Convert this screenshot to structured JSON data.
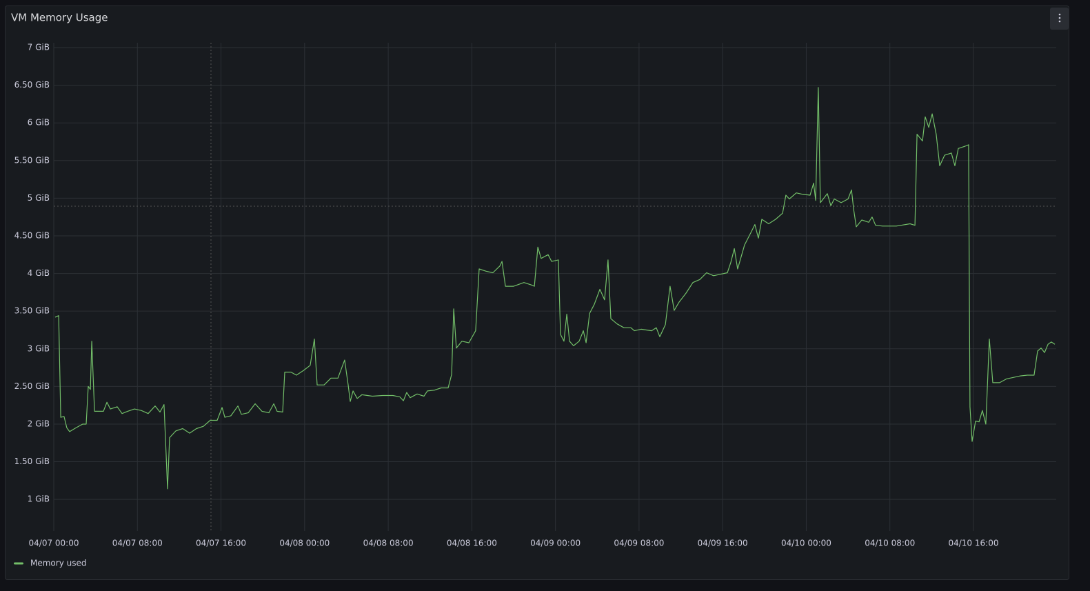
{
  "chart_data": {
    "type": "line",
    "title": "VM Memory Usage",
    "x": [
      "04/07 00:08",
      "04/07 00:28",
      "04/07 00:40",
      "04/07 00:59",
      "04/07 01:15",
      "04/07 01:31",
      "04/07 02:07",
      "04/07 02:46",
      "04/07 03:06",
      "04/07 03:18",
      "04/07 03:30",
      "04/07 03:38",
      "04/07 03:54",
      "04/07 04:45",
      "04/07 05:05",
      "04/07 05:25",
      "04/07 06:04",
      "04/07 06:32",
      "04/07 07:04",
      "04/07 07:43",
      "04/07 08:23",
      "04/07 09:02",
      "04/07 09:42",
      "04/07 10:10",
      "04/07 10:33",
      "04/07 10:45",
      "04/07 10:53",
      "04/07 11:05",
      "04/07 11:41",
      "04/07 12:20",
      "04/07 13:00",
      "04/07 13:39",
      "04/07 14:19",
      "04/07 14:58",
      "04/07 15:38",
      "04/07 16:06",
      "04/07 16:22",
      "04/07 16:57",
      "04/07 17:37",
      "04/07 17:57",
      "04/07 18:36",
      "04/07 19:16",
      "04/07 19:55",
      "04/07 20:35",
      "04/07 21:03",
      "04/07 21:22",
      "04/07 21:54",
      "04/07 22:06",
      "04/07 22:42",
      "04/07 23:13",
      "04/07 23:53",
      "04/08 00:32",
      "04/08 00:56",
      "04/08 01:12",
      "04/08 01:52",
      "04/08 02:31",
      "04/08 03:11",
      "04/08 03:50",
      "04/08 04:10",
      "04/08 04:22",
      "04/08 04:38",
      "04/08 05:02",
      "04/08 05:29",
      "04/08 06:29",
      "04/08 07:28",
      "04/08 08:27",
      "04/08 09:07",
      "04/08 09:27",
      "04/08 09:46",
      "04/08 10:06",
      "04/08 10:46",
      "04/08 11:25",
      "04/08 11:45",
      "04/08 12:25",
      "04/08 13:04",
      "04/08 13:44",
      "04/08 14:04",
      "04/08 14:16",
      "04/08 14:31",
      "04/08 15:03",
      "04/08 15:43",
      "04/08 16:22",
      "04/08 16:42",
      "04/08 17:22",
      "04/08 18:01",
      "04/08 18:41",
      "04/08 18:53",
      "04/08 19:13",
      "04/08 20:00",
      "04/08 20:59",
      "04/08 21:39",
      "04/08 21:59",
      "04/08 22:19",
      "04/08 22:38",
      "04/08 23:18",
      "04/08 23:38",
      "04/09 00:17",
      "04/09 00:29",
      "04/09 00:49",
      "04/09 01:05",
      "04/09 01:21",
      "04/09 01:44",
      "04/09 02:16",
      "04/09 02:40",
      "04/09 02:56",
      "04/09 03:16",
      "04/09 03:43",
      "04/09 04:15",
      "04/09 04:42",
      "04/09 05:02",
      "04/09 05:18",
      "04/09 05:54",
      "04/09 06:33",
      "04/09 07:13",
      "04/09 07:33",
      "04/09 08:12",
      "04/09 09:12",
      "04/09 09:39",
      "04/09 09:59",
      "04/09 10:31",
      "04/09 10:58",
      "04/09 11:22",
      "04/09 11:50",
      "04/09 12:30",
      "04/09 13:09",
      "04/09 13:49",
      "04/09 14:28",
      "04/09 15:08",
      "04/09 15:47",
      "04/09 16:27",
      "04/09 16:47",
      "04/09 17:07",
      "04/09 17:26",
      "04/09 18:06",
      "04/09 18:46",
      "04/09 19:05",
      "04/09 19:25",
      "04/09 19:45",
      "04/09 20:24",
      "04/09 21:04",
      "04/09 21:44",
      "04/09 22:03",
      "04/09 22:23",
      "04/09 23:03",
      "04/09 23:42",
      "04/10 00:22",
      "04/10 00:42",
      "04/10 00:54",
      "04/10 01:09",
      "04/10 01:21",
      "04/10 02:01",
      "04/10 02:21",
      "04/10 02:41",
      "04/10 03:20",
      "04/10 04:00",
      "04/10 04:20",
      "04/10 04:32",
      "04/10 04:47",
      "04/10 05:19",
      "04/10 05:59",
      "04/10 06:18",
      "04/10 06:38",
      "04/10 07:18",
      "04/10 08:37",
      "04/10 09:56",
      "04/10 10:24",
      "04/10 10:36",
      "04/10 11:07",
      "04/10 11:23",
      "04/10 11:43",
      "04/10 12:03",
      "04/10 12:26",
      "04/10 12:46",
      "04/10 13:14",
      "04/10 13:53",
      "04/10 14:13",
      "04/10 14:33",
      "04/10 15:12",
      "04/10 15:32",
      "04/10 15:40",
      "04/10 15:52",
      "04/10 16:12",
      "04/10 16:32",
      "04/10 16:51",
      "04/10 17:11",
      "04/10 17:31",
      "04/10 17:51",
      "04/10 18:30",
      "04/10 19:10",
      "04/10 19:49",
      "04/10 20:29",
      "04/10 21:09",
      "04/10 21:48",
      "04/10 22:08",
      "04/10 22:28",
      "04/10 22:48",
      "04/10 23:08",
      "04/10 23:27",
      "04/10 23:47"
    ],
    "series": [
      {
        "name": "Memory used",
        "color": "#73bf69",
        "values": [
          3.42,
          3.44,
          2.09,
          2.1,
          1.95,
          1.9,
          1.95,
          2.0,
          2.0,
          2.5,
          2.46,
          3.1,
          2.17,
          2.17,
          2.29,
          2.2,
          2.23,
          2.14,
          2.17,
          2.2,
          2.18,
          2.14,
          2.24,
          2.16,
          2.26,
          1.59,
          1.14,
          1.82,
          1.91,
          1.94,
          1.88,
          1.94,
          1.97,
          2.05,
          2.05,
          2.22,
          2.09,
          2.11,
          2.24,
          2.13,
          2.15,
          2.27,
          2.17,
          2.15,
          2.27,
          2.17,
          2.16,
          2.69,
          2.69,
          2.65,
          2.71,
          2.78,
          3.13,
          2.52,
          2.52,
          2.61,
          2.61,
          2.85,
          2.52,
          2.3,
          2.44,
          2.34,
          2.39,
          2.37,
          2.38,
          2.38,
          2.36,
          2.31,
          2.42,
          2.35,
          2.4,
          2.37,
          2.44,
          2.45,
          2.48,
          2.48,
          2.66,
          3.53,
          3.01,
          3.1,
          3.08,
          3.24,
          4.06,
          4.03,
          4.01,
          4.1,
          4.16,
          3.83,
          3.83,
          3.88,
          3.85,
          3.83,
          4.35,
          4.2,
          4.25,
          4.16,
          4.18,
          3.19,
          3.1,
          3.46,
          3.1,
          3.04,
          3.1,
          3.24,
          3.08,
          3.47,
          3.59,
          3.79,
          3.65,
          4.18,
          3.4,
          3.33,
          3.28,
          3.28,
          3.24,
          3.26,
          3.24,
          3.28,
          3.16,
          3.32,
          3.83,
          3.51,
          3.62,
          3.74,
          3.88,
          3.92,
          4.01,
          3.97,
          3.99,
          4.01,
          4.15,
          4.33,
          4.06,
          4.38,
          4.56,
          4.65,
          4.47,
          4.72,
          4.66,
          4.72,
          4.8,
          5.04,
          4.99,
          5.07,
          5.05,
          5.04,
          5.2,
          4.97,
          6.47,
          4.94,
          5.06,
          4.9,
          4.99,
          4.94,
          4.99,
          5.11,
          4.85,
          4.62,
          4.71,
          4.68,
          4.75,
          4.64,
          4.63,
          4.63,
          4.66,
          4.64,
          5.85,
          5.76,
          6.08,
          5.94,
          6.12,
          5.85,
          5.43,
          5.57,
          5.6,
          5.43,
          5.66,
          5.69,
          5.71,
          2.23,
          1.77,
          2.04,
          2.03,
          2.18,
          2.0,
          3.13,
          2.55,
          2.55,
          2.6,
          2.62,
          2.64,
          2.65,
          2.65,
          2.97,
          3.01,
          2.95,
          3.06,
          3.09,
          3.06
        ]
      }
    ],
    "xlim": [
      "04/07 00:00",
      "04/10 23:55"
    ],
    "xticks": [
      "04/07 00:00",
      "04/07 08:00",
      "04/07 16:00",
      "04/08 00:00",
      "04/08 08:00",
      "04/08 16:00",
      "04/09 00:00",
      "04/09 08:00",
      "04/09 16:00",
      "04/10 00:00",
      "04/10 08:00",
      "04/10 16:00"
    ],
    "ylim": [
      0.58,
      7
    ],
    "yticks": [
      {
        "value": 1,
        "label": "1 GiB"
      },
      {
        "value": 1.5,
        "label": "1.50 GiB"
      },
      {
        "value": 2,
        "label": "2 GiB"
      },
      {
        "value": 2.5,
        "label": "2.50 GiB"
      },
      {
        "value": 3,
        "label": "3 GiB"
      },
      {
        "value": 3.5,
        "label": "3.50 GiB"
      },
      {
        "value": 4,
        "label": "4 GiB"
      },
      {
        "value": 4.5,
        "label": "4.50 GiB"
      },
      {
        "value": 5,
        "label": "5 GiB"
      },
      {
        "value": 5.5,
        "label": "5.50 GiB"
      },
      {
        "value": 6,
        "label": "6 GiB"
      },
      {
        "value": 6.5,
        "label": "6.50 GiB"
      },
      {
        "value": 7,
        "label": "7 GiB"
      }
    ],
    "grid": true,
    "legend": "bottom-left"
  }
}
